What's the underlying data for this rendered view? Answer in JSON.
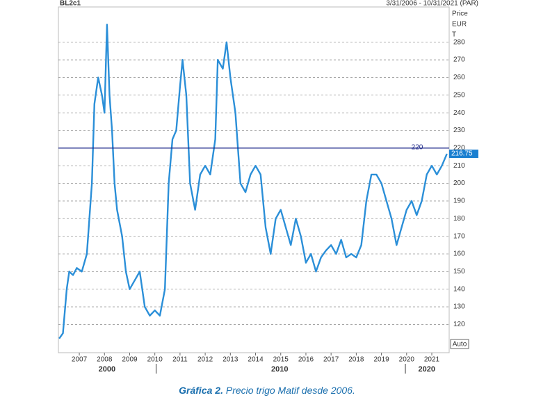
{
  "chart_data": {
    "type": "line",
    "title": "BL2c1",
    "date_range": "3/31/2006 - 10/31/2021 (PAR)",
    "y_axis_label": [
      "Price",
      "EUR",
      "T"
    ],
    "auto_label": "Auto",
    "caption_bold": "Gráfica 2.",
    "caption": "Precio trigo Matif desde 2006.",
    "xlim": [
      2006.17,
      2021.69
    ],
    "xticks": [
      2007,
      2008,
      2009,
      2010,
      2011,
      2012,
      2013,
      2014,
      2015,
      2016,
      2017,
      2018,
      2019,
      2020,
      2021
    ],
    "decade_ticks": [
      {
        "value": 2008.1,
        "label": "2000"
      },
      {
        "value": 2014.96,
        "label": "2010"
      },
      {
        "value": 2020.8,
        "label": "2020"
      }
    ],
    "decade_separators": [
      2010.05,
      2019.95
    ],
    "ylim": [
      104,
      300
    ],
    "yticks": [
      120,
      130,
      140,
      150,
      160,
      170,
      180,
      190,
      200,
      210,
      220,
      230,
      240,
      250,
      260,
      270,
      280
    ],
    "grid": true,
    "reference_line": {
      "value": 220,
      "label": "220",
      "color": "#1f2a8a"
    },
    "last_price": {
      "value": 216.75,
      "label": "216.75",
      "color": "#1a7fd0"
    },
    "series": [
      {
        "color": "#2b8fd8",
        "x": [
          2006.2,
          2006.35,
          2006.5,
          2006.6,
          2006.75,
          2006.9,
          2007.1,
          2007.3,
          2007.5,
          2007.6,
          2007.75,
          2007.9,
          2008.0,
          2008.1,
          2008.2,
          2008.3,
          2008.4,
          2008.5,
          2008.7,
          2008.85,
          2009.0,
          2009.2,
          2009.4,
          2009.6,
          2009.8,
          2010.0,
          2010.2,
          2010.4,
          2010.55,
          2010.7,
          2010.85,
          2011.0,
          2011.1,
          2011.25,
          2011.4,
          2011.6,
          2011.8,
          2012.0,
          2012.2,
          2012.4,
          2012.5,
          2012.7,
          2012.85,
          2013.0,
          2013.2,
          2013.4,
          2013.6,
          2013.8,
          2014.0,
          2014.2,
          2014.4,
          2014.6,
          2014.8,
          2015.0,
          2015.2,
          2015.4,
          2015.6,
          2015.8,
          2016.0,
          2016.2,
          2016.4,
          2016.6,
          2016.8,
          2017.0,
          2017.2,
          2017.4,
          2017.6,
          2017.8,
          2018.0,
          2018.2,
          2018.4,
          2018.6,
          2018.8,
          2019.0,
          2019.2,
          2019.4,
          2019.6,
          2019.8,
          2020.0,
          2020.2,
          2020.4,
          2020.6,
          2020.8,
          2021.0,
          2021.2,
          2021.4,
          2021.6
        ],
        "values": [
          112,
          115,
          140,
          150,
          148,
          152,
          150,
          160,
          200,
          245,
          260,
          250,
          240,
          290,
          250,
          230,
          200,
          185,
          170,
          150,
          140,
          145,
          150,
          130,
          125,
          128,
          125,
          140,
          200,
          225,
          230,
          255,
          270,
          250,
          200,
          185,
          205,
          210,
          205,
          225,
          270,
          265,
          280,
          260,
          240,
          200,
          195,
          205,
          210,
          205,
          175,
          160,
          180,
          185,
          175,
          165,
          180,
          170,
          155,
          160,
          150,
          158,
          162,
          165,
          160,
          168,
          158,
          160,
          158,
          165,
          190,
          205,
          205,
          200,
          190,
          180,
          165,
          175,
          185,
          190,
          182,
          190,
          205,
          210,
          205,
          210,
          216.75
        ]
      }
    ]
  }
}
